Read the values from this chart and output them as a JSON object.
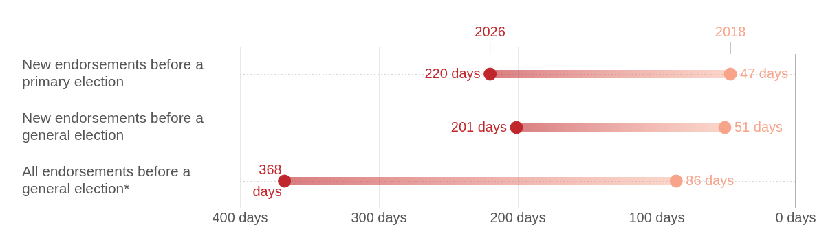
{
  "chart_data": {
    "type": "scatter",
    "orientation": "horizontal",
    "categories": [
      "New endorsements before a primary election",
      "New endorsements before a general election",
      "All endorsements before a general election*"
    ],
    "series": [
      {
        "name": "2026",
        "color": "#c0272d",
        "values": [
          220,
          201,
          368
        ],
        "value_labels": [
          "220 days",
          "201 days",
          "368 days"
        ]
      },
      {
        "name": "2018",
        "color": "#f7a48a",
        "values": [
          47,
          51,
          86
        ],
        "value_labels": [
          "47 days",
          "51 days",
          "86 days"
        ]
      }
    ],
    "xlim": [
      400,
      0
    ],
    "xticks": [
      {
        "value": 400,
        "label": "400 days"
      },
      {
        "value": 300,
        "label": "300 days"
      },
      {
        "value": 200,
        "label": "200 days"
      },
      {
        "value": 100,
        "label": "100 days"
      },
      {
        "value": 0,
        "label": "0 days"
      }
    ],
    "ref_lines": [
      {
        "axis": "x",
        "value": 0,
        "color": "#999999"
      }
    ],
    "grid": true,
    "legend": "top",
    "marker": "circle"
  }
}
